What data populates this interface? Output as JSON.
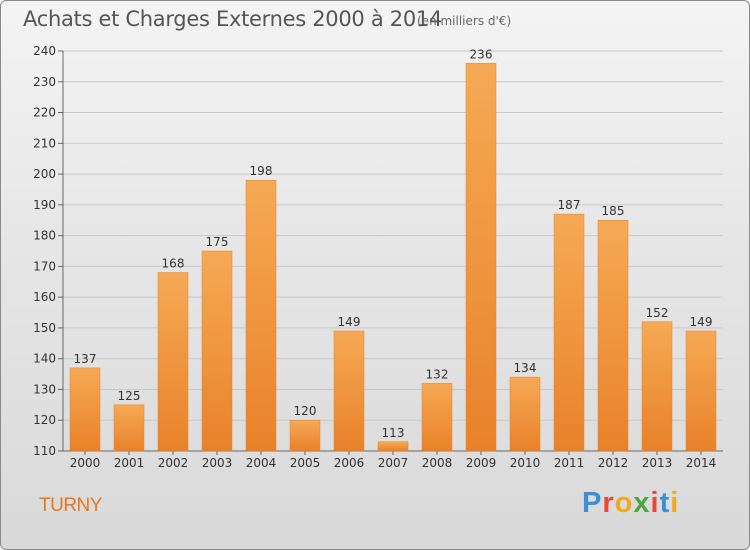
{
  "header": {
    "title": "Achats et Charges Externes 2000 à 2014",
    "unit": "(en milliers d'€)"
  },
  "footer": {
    "commune": "TURNY",
    "logo_text": "Proxiti",
    "logo_colors": [
      "#3a8fd6",
      "#e8463c",
      "#f2a81d",
      "#4aa83b",
      "#e8463c",
      "#3a8fd6",
      "#f2a81d"
    ]
  },
  "chart_data": {
    "type": "bar",
    "title": "Achats et Charges Externes 2000 à 2014",
    "subtitle": "(en milliers d'€)",
    "xlabel": "",
    "ylabel": "",
    "categories": [
      "2000",
      "2001",
      "2002",
      "2003",
      "2004",
      "2005",
      "2006",
      "2007",
      "2008",
      "2009",
      "2010",
      "2011",
      "2012",
      "2013",
      "2014"
    ],
    "values": [
      137,
      125,
      168,
      175,
      198,
      120,
      149,
      113,
      132,
      236,
      134,
      187,
      185,
      152,
      149
    ],
    "ylim": [
      110,
      240
    ],
    "yticks": [
      110,
      120,
      130,
      140,
      150,
      160,
      170,
      180,
      190,
      200,
      210,
      220,
      230,
      240
    ],
    "grid": true,
    "bar_color": "#e8822a",
    "bar_color_light": "#f6a955"
  }
}
